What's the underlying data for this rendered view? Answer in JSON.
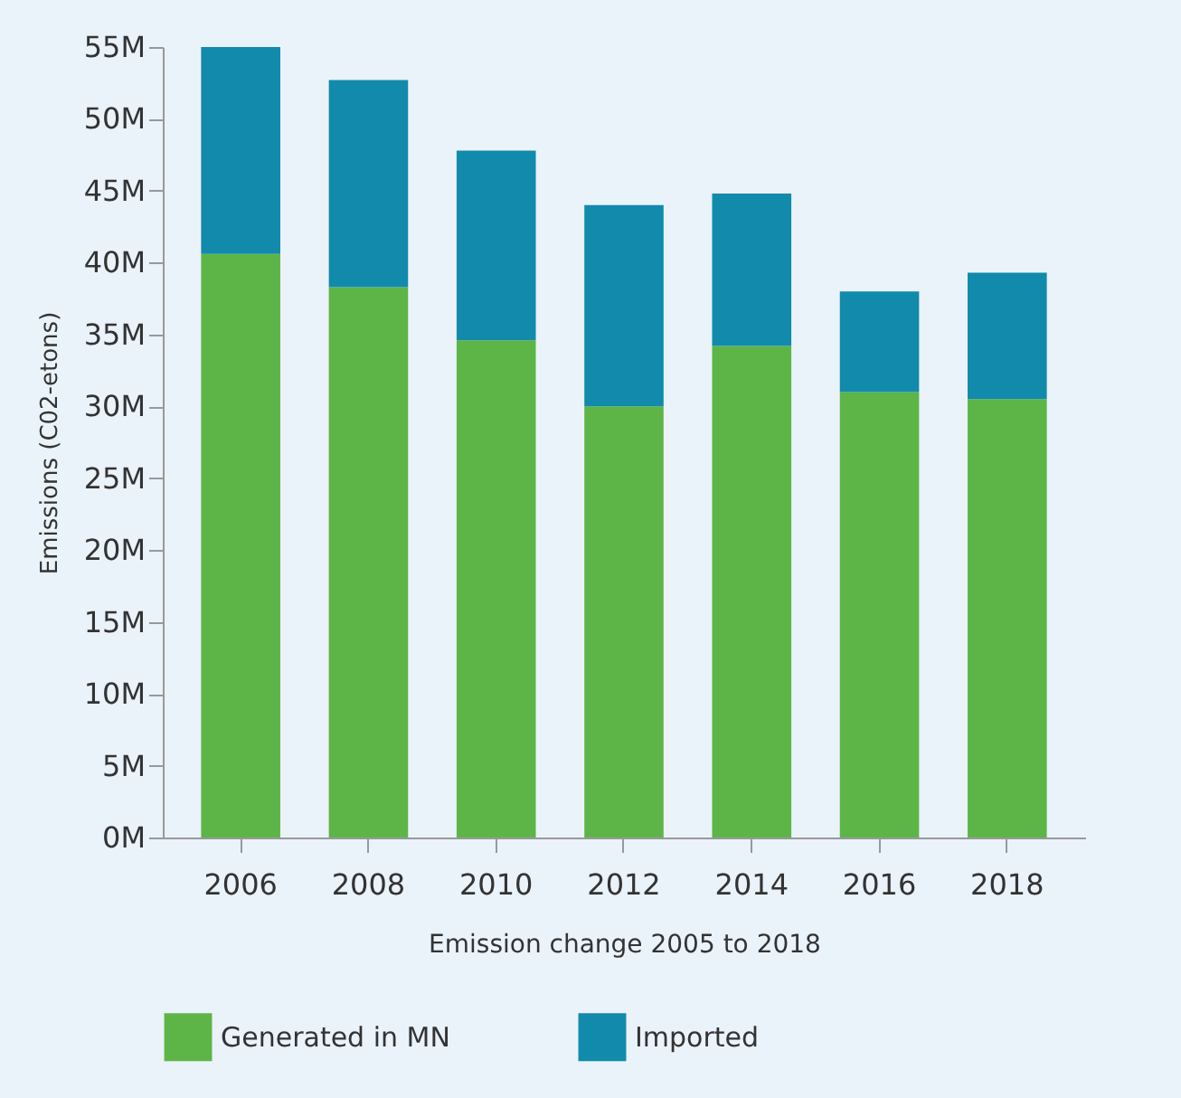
{
  "chart_data": {
    "type": "bar",
    "stacked": true,
    "xlabel": "Emission change 2005 to 2018",
    "ylabel": "Emissions (C02-etons)",
    "categories": [
      "2006",
      "2008",
      "2010",
      "2012",
      "2014",
      "2016",
      "2018"
    ],
    "series": [
      {
        "name": "Generated in MN",
        "color": "#5db547",
        "values": [
          40.6,
          38.3,
          34.6,
          30.0,
          34.2,
          31.0,
          30.5
        ]
      },
      {
        "name": "Imported",
        "color": "#118aab",
        "values": [
          14.4,
          14.4,
          13.2,
          14.0,
          10.6,
          7.0,
          8.8
        ]
      }
    ],
    "ylim": [
      0,
      55
    ],
    "yticks": [
      {
        "value": 0,
        "label": "0M"
      },
      {
        "value": 5,
        "label": "5M"
      },
      {
        "value": 10,
        "label": "10M"
      },
      {
        "value": 15,
        "label": "15M"
      },
      {
        "value": 20,
        "label": "20M"
      },
      {
        "value": 25,
        "label": "25M"
      },
      {
        "value": 30,
        "label": "30M"
      },
      {
        "value": 35,
        "label": "35M"
      },
      {
        "value": 40,
        "label": "40M"
      },
      {
        "value": 45,
        "label": "45M"
      },
      {
        "value": 50,
        "label": "50M"
      },
      {
        "value": 55,
        "label": "55M"
      }
    ],
    "grid": false,
    "legend": "bottom"
  }
}
